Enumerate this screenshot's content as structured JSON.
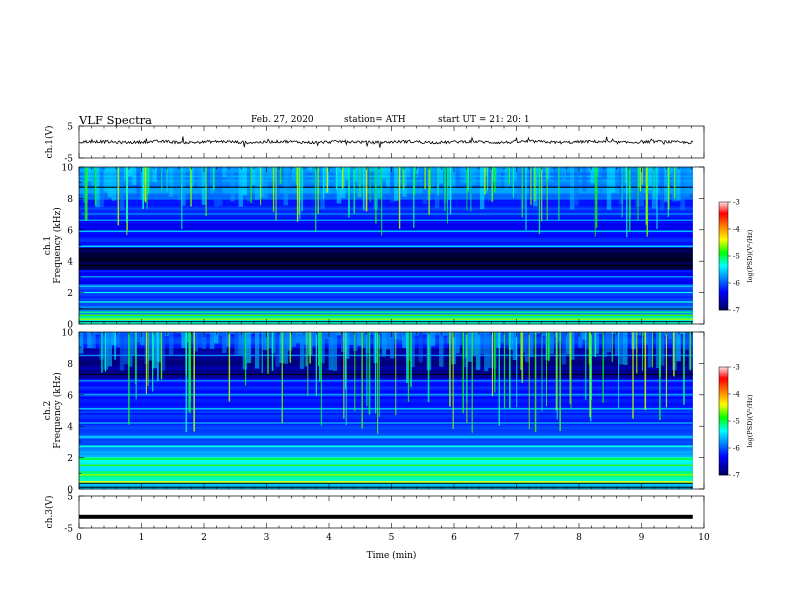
{
  "header": {
    "title": "VLF  Spectra",
    "date": "Feb. 27, 2020",
    "station": "station= ATH",
    "start": "start  UT  =    21: 20: 1"
  },
  "chart_data": {
    "type": "heatmap",
    "x": {
      "label": "Time  (min)",
      "range": [
        0,
        10
      ],
      "ticks": [
        "0",
        "1",
        "2",
        "3",
        "4",
        "5",
        "6",
        "7",
        "8",
        "9",
        "10"
      ],
      "data_end": 9.82
    },
    "panels": [
      {
        "id": "ch1-waveform",
        "type": "line",
        "ylabel": "ch.1(V)",
        "ylim": [
          -5,
          5
        ],
        "ytick_labels": [
          "5",
          "-5"
        ]
      },
      {
        "id": "ch1-spectrogram",
        "type": "heatmap",
        "ylabel": "ch.1\nFrequency  (kHz)",
        "ylim": [
          0,
          10
        ],
        "ytick_labels": [
          "0",
          "2",
          "4",
          "6",
          "8",
          "10"
        ],
        "colorbar": {
          "label": "log(PSD)(V²/Hz)",
          "range": [
            -7,
            -3
          ],
          "tick_labels": [
            "-3",
            "-4",
            "-5",
            "-6",
            "-7"
          ]
        }
      },
      {
        "id": "ch2-spectrogram",
        "type": "heatmap",
        "ylabel": "ch.2\nFrequency  (kHz)",
        "ylim": [
          0,
          10
        ],
        "ytick_labels": [
          "0",
          "2",
          "4",
          "6",
          "8",
          "10"
        ],
        "colorbar": {
          "label": "log(PSD)(V²/Hz)",
          "range": [
            -7,
            -3
          ],
          "tick_labels": [
            "-3",
            "-4",
            "-5",
            "-6",
            "-7"
          ]
        }
      },
      {
        "id": "ch3-waveform",
        "type": "line",
        "ylabel": "ch.3(V)",
        "ylim": [
          -5,
          5
        ],
        "ytick_labels": [
          "5",
          "-5"
        ],
        "level": -1.5
      }
    ],
    "colormap": [
      "#000000",
      "#00008f",
      "#0000ff",
      "#0080ff",
      "#00ffff",
      "#00ff00",
      "#ffff00",
      "#ff8000",
      "#ff0000",
      "#ffffff"
    ]
  }
}
